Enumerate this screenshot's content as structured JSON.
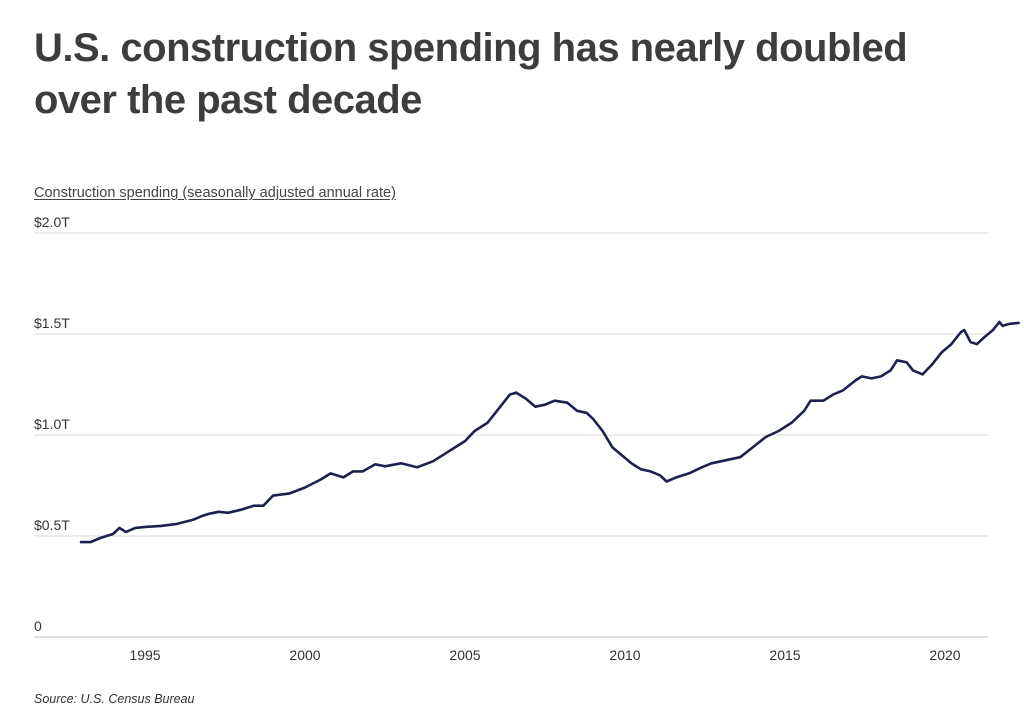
{
  "header": {
    "title": "U.S. construction spending has nearly doubled over the past decade",
    "subtitle": "Construction spending (seasonally adjusted annual rate)"
  },
  "footer": {
    "source": "Source:  U.S. Census Bureau"
  },
  "colors": {
    "line": "#1c2150",
    "grid": "#d9d9d9",
    "axis": "#bfbfbf"
  },
  "chart_data": {
    "type": "line",
    "title": "U.S. construction spending has nearly doubled over the past decade",
    "ylabel": "Construction spending (seasonally adjusted annual rate)",
    "xlabel": "",
    "xlim": [
      1991.6,
      2021.4
    ],
    "ylim": [
      0,
      2.0
    ],
    "yticks": [
      {
        "value": 0,
        "label": "0"
      },
      {
        "value": 0.5,
        "label": "$0.5T"
      },
      {
        "value": 1.0,
        "label": "$1.0T"
      },
      {
        "value": 1.5,
        "label": "$1.5T"
      },
      {
        "value": 2.0,
        "label": "$2.0T"
      }
    ],
    "xticks": [
      {
        "value": 1995,
        "label": "1995"
      },
      {
        "value": 2000,
        "label": "2000"
      },
      {
        "value": 2005,
        "label": "2005"
      },
      {
        "value": 2010,
        "label": "2010"
      },
      {
        "value": 2015,
        "label": "2015"
      },
      {
        "value": 2020,
        "label": "2020"
      }
    ],
    "grid": true,
    "series": [
      {
        "name": "Construction spending (SAAR, $T)",
        "points": [
          [
            1993.0,
            0.47
          ],
          [
            1993.3,
            0.47
          ],
          [
            1993.6,
            0.49
          ],
          [
            1994.0,
            0.51
          ],
          [
            1994.2,
            0.54
          ],
          [
            1994.4,
            0.52
          ],
          [
            1994.7,
            0.54
          ],
          [
            1995.0,
            0.545
          ],
          [
            1995.5,
            0.55
          ],
          [
            1996.0,
            0.56
          ],
          [
            1996.5,
            0.58
          ],
          [
            1996.8,
            0.6
          ],
          [
            1997.0,
            0.61
          ],
          [
            1997.3,
            0.62
          ],
          [
            1997.6,
            0.615
          ],
          [
            1998.0,
            0.63
          ],
          [
            1998.4,
            0.65
          ],
          [
            1998.7,
            0.65
          ],
          [
            1999.0,
            0.7
          ],
          [
            1999.5,
            0.71
          ],
          [
            2000.0,
            0.74
          ],
          [
            2000.5,
            0.78
          ],
          [
            2000.8,
            0.81
          ],
          [
            2001.2,
            0.79
          ],
          [
            2001.5,
            0.82
          ],
          [
            2001.8,
            0.82
          ],
          [
            2002.2,
            0.855
          ],
          [
            2002.5,
            0.845
          ],
          [
            2003.0,
            0.86
          ],
          [
            2003.5,
            0.84
          ],
          [
            2004.0,
            0.87
          ],
          [
            2004.5,
            0.92
          ],
          [
            2004.8,
            0.95
          ],
          [
            2005.0,
            0.97
          ],
          [
            2005.3,
            1.02
          ],
          [
            2005.7,
            1.06
          ],
          [
            2006.0,
            1.12
          ],
          [
            2006.4,
            1.2
          ],
          [
            2006.6,
            1.21
          ],
          [
            2006.9,
            1.18
          ],
          [
            2007.2,
            1.14
          ],
          [
            2007.5,
            1.15
          ],
          [
            2007.8,
            1.17
          ],
          [
            2008.2,
            1.16
          ],
          [
            2008.5,
            1.12
          ],
          [
            2008.8,
            1.11
          ],
          [
            2009.0,
            1.08
          ],
          [
            2009.3,
            1.02
          ],
          [
            2009.6,
            0.94
          ],
          [
            2009.9,
            0.9
          ],
          [
            2010.2,
            0.86
          ],
          [
            2010.5,
            0.83
          ],
          [
            2010.8,
            0.82
          ],
          [
            2011.1,
            0.8
          ],
          [
            2011.3,
            0.77
          ],
          [
            2011.6,
            0.79
          ],
          [
            2012.0,
            0.81
          ],
          [
            2012.4,
            0.84
          ],
          [
            2012.7,
            0.86
          ],
          [
            2013.0,
            0.87
          ],
          [
            2013.3,
            0.88
          ],
          [
            2013.6,
            0.89
          ],
          [
            2014.0,
            0.94
          ],
          [
            2014.4,
            0.99
          ],
          [
            2014.8,
            1.02
          ],
          [
            2015.2,
            1.06
          ],
          [
            2015.6,
            1.12
          ],
          [
            2015.8,
            1.17
          ],
          [
            2016.2,
            1.17
          ],
          [
            2016.5,
            1.2
          ],
          [
            2016.8,
            1.22
          ],
          [
            2017.2,
            1.27
          ],
          [
            2017.4,
            1.29
          ],
          [
            2017.7,
            1.28
          ],
          [
            2018.0,
            1.29
          ],
          [
            2018.3,
            1.32
          ],
          [
            2018.5,
            1.37
          ],
          [
            2018.8,
            1.36
          ],
          [
            2019.0,
            1.32
          ],
          [
            2019.3,
            1.3
          ],
          [
            2019.6,
            1.35
          ],
          [
            2019.9,
            1.41
          ],
          [
            2020.2,
            1.45
          ],
          [
            2020.5,
            1.51
          ],
          [
            2020.6,
            1.52
          ],
          [
            2020.8,
            1.46
          ],
          [
            2021.0,
            1.45
          ],
          [
            2021.2,
            1.48
          ],
          [
            2021.5,
            1.52
          ],
          [
            2021.7,
            1.56
          ],
          [
            2021.8,
            1.54
          ],
          [
            2022.0,
            1.55
          ],
          [
            2022.3,
            1.555
          ]
        ]
      }
    ],
    "x_range_shown": "1993 to 2022"
  }
}
